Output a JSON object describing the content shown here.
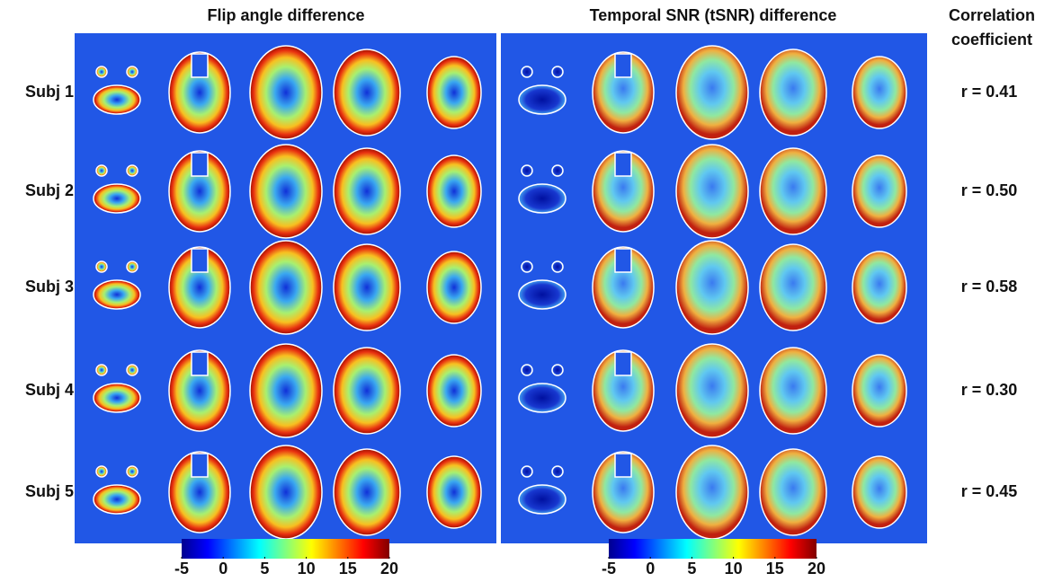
{
  "panels": [
    {
      "title": "Flip angle difference",
      "colorbar_ticks": [
        -5,
        0,
        5,
        10,
        15,
        20
      ]
    },
    {
      "title": "Temporal SNR (tSNR) difference",
      "colorbar_ticks": [
        -5,
        0,
        5,
        10,
        15,
        20
      ]
    }
  ],
  "correlation_header": [
    "Correlation",
    "coefficient"
  ],
  "rows": [
    {
      "label": "Subj 1",
      "r": "r = 0.41"
    },
    {
      "label": "Subj 2",
      "r": "r = 0.50"
    },
    {
      "label": "Subj 3",
      "r": "r = 0.58"
    },
    {
      "label": "Subj 4",
      "r": "r = 0.30"
    },
    {
      "label": "Subj 5",
      "r": "r = 0.45"
    }
  ]
}
